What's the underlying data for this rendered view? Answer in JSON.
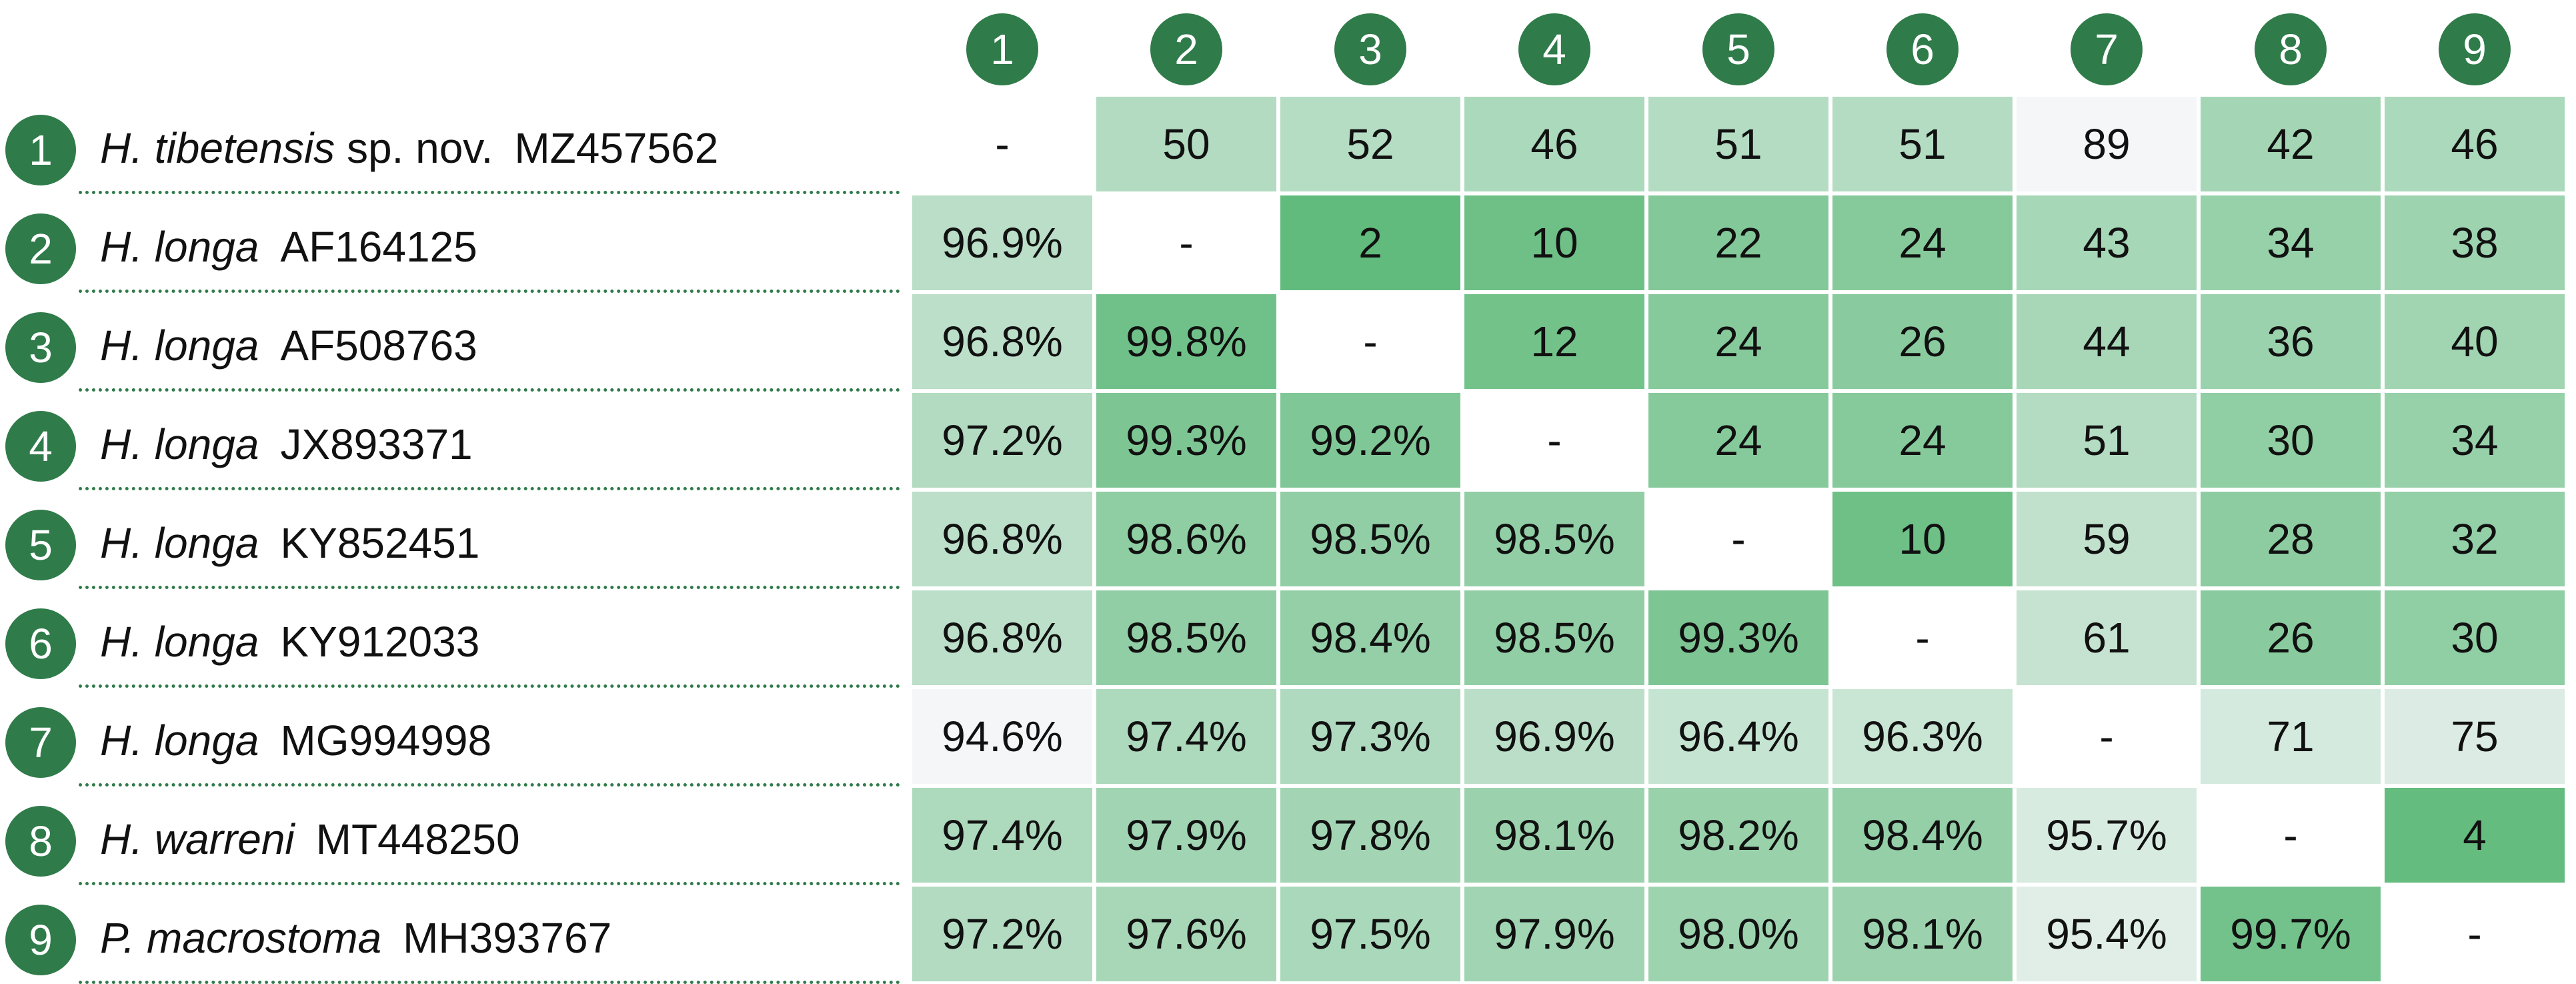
{
  "column_headers": [
    "1",
    "2",
    "3",
    "4",
    "5",
    "6",
    "7",
    "8",
    "9"
  ],
  "rows": [
    {
      "num": "1",
      "genus": "H. tibetensis",
      "epithet": "sp. nov.",
      "accession": "MZ457562"
    },
    {
      "num": "2",
      "genus": "H. longa",
      "epithet": "",
      "accession": "AF164125"
    },
    {
      "num": "3",
      "genus": "H. longa",
      "epithet": "",
      "accession": "AF508763"
    },
    {
      "num": "4",
      "genus": "H. longa",
      "epithet": "",
      "accession": "JX893371"
    },
    {
      "num": "5",
      "genus": "H. longa",
      "epithet": "",
      "accession": "KY852451"
    },
    {
      "num": "6",
      "genus": "H. longa",
      "epithet": "",
      "accession": "KY912033"
    },
    {
      "num": "7",
      "genus": "H. longa",
      "epithet": "",
      "accession": "MG994998"
    },
    {
      "num": "8",
      "genus": "H. warreni",
      "epithet": "",
      "accession": "MT448250"
    },
    {
      "num": "9",
      "genus": "P. macrostoma",
      "epithet": "",
      "accession": "MH393767"
    }
  ],
  "chart_data": {
    "type": "heatmap",
    "colors": {
      "low": "#f7f7fb",
      "high": "#5cb978",
      "header": "#2f7b4a"
    },
    "cells": [
      [
        "-",
        "50",
        "52",
        "46",
        "51",
        "51",
        "89",
        "42",
        "46"
      ],
      [
        "96.9%",
        "-",
        "2",
        "10",
        "22",
        "24",
        "43",
        "34",
        "38"
      ],
      [
        "96.8%",
        "99.8%",
        "-",
        "12",
        "24",
        "26",
        "44",
        "36",
        "40"
      ],
      [
        "97.2%",
        "99.3%",
        "99.2%",
        "-",
        "24",
        "24",
        "51",
        "30",
        "34"
      ],
      [
        "96.8%",
        "98.6%",
        "98.5%",
        "98.5%",
        "-",
        "10",
        "59",
        "28",
        "32"
      ],
      [
        "96.8%",
        "98.5%",
        "98.4%",
        "98.5%",
        "99.3%",
        "-",
        "61",
        "26",
        "30"
      ],
      [
        "94.6%",
        "97.4%",
        "97.3%",
        "96.9%",
        "96.4%",
        "96.3%",
        "-",
        "71",
        "75"
      ],
      [
        "97.4%",
        "97.9%",
        "97.8%",
        "98.1%",
        "98.2%",
        "98.4%",
        "95.7%",
        "-",
        "4"
      ],
      [
        "97.2%",
        "97.6%",
        "97.5%",
        "97.9%",
        "98.0%",
        "98.1%",
        "95.4%",
        "99.7%",
        "-"
      ]
    ]
  }
}
